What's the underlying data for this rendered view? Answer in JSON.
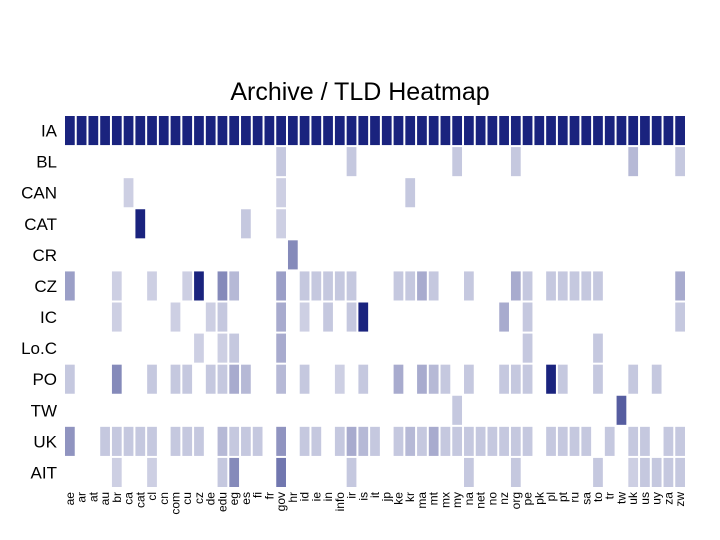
{
  "chart_data": {
    "type": "heatmap",
    "title": "Archive / TLD Heatmap",
    "rows": [
      "IA",
      "BL",
      "CAN",
      "CAT",
      "CR",
      "CZ",
      "IC",
      "Lo.C",
      "PO",
      "TW",
      "UK",
      "AIT"
    ],
    "columns": [
      "ae",
      "ar",
      "at",
      "au",
      "br",
      "ca",
      "cat",
      "cl",
      "cn",
      "com",
      "cu",
      "cz",
      "de",
      "edu",
      "eg",
      "es",
      "fi",
      "fr",
      "gov",
      "hr",
      "id",
      "ie",
      "in",
      "info",
      "ir",
      "is",
      "it",
      "jp",
      "ke",
      "kr",
      "ma",
      "mt",
      "mx",
      "my",
      "na",
      "net",
      "no",
      "nz",
      "org",
      "pe",
      "pk",
      "pl",
      "pt",
      "ru",
      "sa",
      "to",
      "tr",
      "tw",
      "uk",
      "us",
      "uy",
      "za",
      "zw"
    ],
    "color_scale": [
      "#ffffff",
      "#1a237e"
    ],
    "values": [
      [
        1,
        1,
        1,
        1,
        1,
        1,
        1,
        1,
        1,
        1,
        1,
        1,
        1,
        1,
        1,
        1,
        1,
        1,
        1,
        1,
        1,
        1,
        1,
        1,
        1,
        1,
        1,
        1,
        1,
        1,
        1,
        1,
        1,
        1,
        1,
        1,
        1,
        1,
        1,
        1,
        1,
        1,
        1,
        1,
        1,
        1,
        1,
        1,
        1,
        1,
        1,
        1,
        1
      ],
      [
        0,
        0,
        0,
        0,
        0,
        0,
        0,
        0,
        0,
        0,
        0,
        0,
        0,
        0,
        0,
        0,
        0,
        0,
        0.1,
        0,
        0,
        0,
        0,
        0,
        0.1,
        0,
        0,
        0,
        0,
        0,
        0,
        0,
        0,
        0.1,
        0,
        0,
        0,
        0,
        0.1,
        0,
        0,
        0,
        0,
        0,
        0,
        0,
        0,
        0,
        0.15,
        0,
        0,
        0,
        0.1
      ],
      [
        0,
        0,
        0,
        0,
        0,
        0.08,
        0,
        0,
        0,
        0,
        0,
        0,
        0,
        0,
        0,
        0,
        0,
        0,
        0.08,
        0,
        0,
        0,
        0,
        0,
        0,
        0,
        0,
        0,
        0,
        0.1,
        0,
        0,
        0,
        0,
        0,
        0,
        0,
        0,
        0,
        0,
        0,
        0,
        0,
        0,
        0,
        0,
        0,
        0,
        0,
        0,
        0,
        0,
        0
      ],
      [
        0,
        0,
        0,
        0,
        0,
        0,
        1,
        0,
        0,
        0,
        0,
        0,
        0,
        0,
        0,
        0.1,
        0,
        0,
        0.08,
        0,
        0,
        0,
        0,
        0,
        0,
        0,
        0,
        0,
        0,
        0,
        0,
        0,
        0,
        0,
        0,
        0,
        0,
        0,
        0,
        0,
        0,
        0,
        0,
        0,
        0,
        0,
        0,
        0,
        0,
        0,
        0,
        0,
        0
      ],
      [
        0,
        0,
        0,
        0,
        0,
        0,
        0,
        0,
        0,
        0,
        0,
        0,
        0,
        0,
        0,
        0,
        0,
        0,
        0,
        0.35,
        0,
        0,
        0,
        0,
        0,
        0,
        0,
        0,
        0,
        0,
        0,
        0,
        0,
        0,
        0,
        0,
        0,
        0,
        0,
        0,
        0,
        0,
        0,
        0,
        0,
        0,
        0,
        0,
        0,
        0,
        0,
        0,
        0
      ],
      [
        0.25,
        0,
        0,
        0,
        0.08,
        0,
        0,
        0.08,
        0,
        0,
        0.08,
        1,
        0,
        0.35,
        0.15,
        0,
        0,
        0,
        0.25,
        0,
        0.1,
        0.1,
        0.1,
        0.1,
        0.1,
        0,
        0,
        0,
        0.1,
        0.1,
        0.2,
        0.1,
        0,
        0,
        0.1,
        0,
        0,
        0,
        0.2,
        0.1,
        0,
        0.1,
        0.1,
        0.1,
        0.1,
        0.1,
        0,
        0,
        0,
        0,
        0,
        0,
        0.2
      ],
      [
        0,
        0,
        0,
        0,
        0.08,
        0,
        0,
        0,
        0,
        0.08,
        0,
        0,
        0.08,
        0.1,
        0,
        0,
        0,
        0,
        0.2,
        0,
        0.08,
        0,
        0.1,
        0,
        0.1,
        1,
        0,
        0,
        0,
        0,
        0,
        0,
        0,
        0,
        0,
        0,
        0,
        0.2,
        0,
        0.1,
        0,
        0,
        0,
        0,
        0,
        0,
        0,
        0,
        0,
        0,
        0,
        0,
        0.1
      ],
      [
        0,
        0,
        0,
        0,
        0,
        0,
        0,
        0,
        0,
        0,
        0,
        0.08,
        0,
        0.08,
        0.1,
        0,
        0,
        0,
        0.2,
        0,
        0,
        0,
        0,
        0,
        0,
        0,
        0,
        0,
        0,
        0,
        0,
        0,
        0,
        0,
        0,
        0,
        0,
        0,
        0,
        0.1,
        0,
        0,
        0,
        0,
        0,
        0.1,
        0,
        0,
        0,
        0,
        0,
        0,
        0
      ],
      [
        0.1,
        0,
        0,
        0,
        0.35,
        0,
        0,
        0.1,
        0,
        0.1,
        0.1,
        0,
        0.1,
        0.1,
        0.2,
        0.15,
        0,
        0,
        0.15,
        0,
        0.1,
        0,
        0,
        0.08,
        0,
        0.1,
        0,
        0,
        0.2,
        0,
        0.2,
        0.15,
        0.1,
        0,
        0.1,
        0,
        0,
        0.1,
        0.1,
        0.1,
        0,
        1,
        0.1,
        0,
        0,
        0.1,
        0,
        0,
        0.1,
        0,
        0.1,
        0,
        0
      ],
      [
        0,
        0,
        0,
        0,
        0,
        0,
        0,
        0,
        0,
        0,
        0,
        0,
        0,
        0,
        0,
        0,
        0,
        0,
        0,
        0,
        0,
        0,
        0,
        0,
        0,
        0,
        0,
        0,
        0,
        0,
        0,
        0,
        0,
        0.1,
        0,
        0,
        0,
        0,
        0,
        0,
        0,
        0,
        0,
        0,
        0,
        0,
        0,
        0.6,
        0,
        0,
        0,
        0,
        0
      ],
      [
        0.3,
        0,
        0,
        0.1,
        0.1,
        0.1,
        0.1,
        0.1,
        0,
        0.1,
        0.1,
        0.1,
        0,
        0.15,
        0.1,
        0.1,
        0.1,
        0,
        0.3,
        0,
        0.1,
        0.1,
        0,
        0.1,
        0.2,
        0.15,
        0.1,
        0,
        0.1,
        0.15,
        0.1,
        0.2,
        0.1,
        0.1,
        0.1,
        0.1,
        0.1,
        0.1,
        0.1,
        0.1,
        0,
        0.1,
        0.1,
        0.1,
        0.1,
        0,
        0.1,
        0,
        0.1,
        0.1,
        0,
        0.1,
        0.1
      ],
      [
        0,
        0,
        0,
        0,
        0.08,
        0,
        0,
        0.08,
        0,
        0,
        0,
        0,
        0,
        0.1,
        0.35,
        0,
        0,
        0,
        0.45,
        0,
        0,
        0,
        0,
        0,
        0.1,
        0,
        0,
        0,
        0,
        0,
        0,
        0,
        0,
        0,
        0.1,
        0,
        0,
        0,
        0.1,
        0,
        0,
        0,
        0,
        0,
        0,
        0.1,
        0,
        0,
        0.08,
        0.1,
        0.1,
        0.1,
        0.1
      ]
    ]
  }
}
